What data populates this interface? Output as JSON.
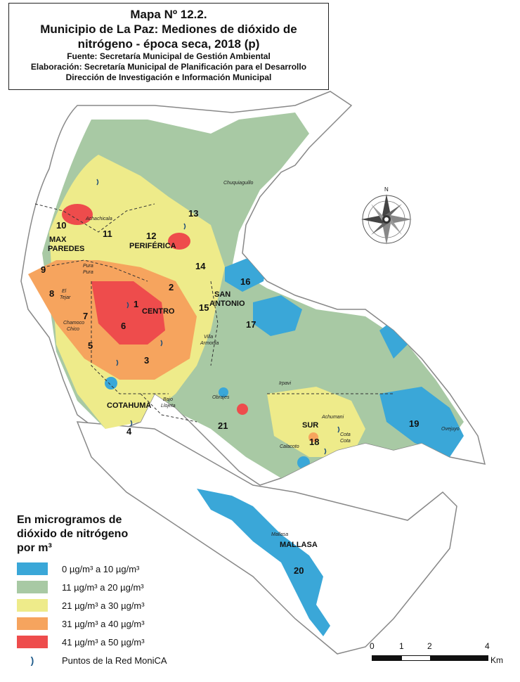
{
  "title": {
    "line1": "Mapa Nº 12.2.",
    "line2": "Municipio de La Paz: Mediones de dióxido de",
    "line3": "nitrógeno - época seca, 2018 (p)",
    "source": "Fuente: Secretaría Municipal de Gestión Ambiental",
    "elaboration": "Elaboración: Secretaría Municipal de Planificación para el Desarrollo",
    "direction": "Dirección de Investigación e Información Municipal"
  },
  "districts": [
    {
      "number": "10"
    },
    {
      "number": "11"
    },
    {
      "number": "12"
    },
    {
      "number": "13"
    },
    {
      "number": "14"
    },
    {
      "number": "9"
    },
    {
      "number": "8"
    },
    {
      "number": "7"
    },
    {
      "number": "1"
    },
    {
      "number": "2"
    },
    {
      "number": "6"
    },
    {
      "number": "5"
    },
    {
      "number": "3"
    },
    {
      "number": "4"
    },
    {
      "number": "15"
    },
    {
      "number": "16"
    },
    {
      "number": "17"
    },
    {
      "number": "21"
    },
    {
      "number": "18"
    },
    {
      "number": "19"
    },
    {
      "number": "20"
    }
  ],
  "macrodistricts": {
    "max_paredes_1": "MAX",
    "max_paredes_2": "PAREDES",
    "periferica": "PERIFÉRICA",
    "centro": "CENTRO",
    "san_antonio_1": "SAN",
    "san_antonio_2": "ANTONIO",
    "cotahuma": "COTAHUMA",
    "sur": "SUR",
    "mallasa": "MALLASA"
  },
  "places": {
    "chuquiaguillo": "Chuquiaguillo",
    "achachicala": "Achachicala",
    "pura_pura_1": "Pura",
    "pura_pura_2": "Pura",
    "el_tejar_1": "El",
    "el_tejar_2": "Tejar",
    "chamoco_1": "Chamoco",
    "chamoco_2": "Chico",
    "villa_armonia_1": "Villa",
    "villa_armonia_2": "Armonía",
    "bajo_llojeta_1": "Bajo",
    "bajo_llojeta_2": "Llojeta",
    "obrajes": "Obrajes",
    "irpavi": "Irpavi",
    "achumani": "Achumani",
    "cota_cota_1": "Cota",
    "cota_cota_2": "Cota",
    "calacoto": "Calacoto",
    "ovejuyo": "Ovejuyo",
    "mallasa": "Mallasa"
  },
  "compass": {
    "north": "N"
  },
  "legend": {
    "title_1": "En microgramos de",
    "title_2": "dióxido de nitrógeno",
    "title_3": "por m³",
    "classes": [
      {
        "label": "0 µg/m³  a 10 µg/m³",
        "color": "#3aa7d8"
      },
      {
        "label": "11 µg/m³  a 20 µg/m³",
        "color": "#a8c9a4"
      },
      {
        "label": "21 µg/m³  a 30 µg/m³",
        "color": "#eeeb8a"
      },
      {
        "label": "31 µg/m³  a 40 µg/m³",
        "color": "#f6a45e"
      },
      {
        "label": "41 µg/m³  a 50 µg/m³",
        "color": "#ee4c4c"
      }
    ],
    "points_label": "Puntos de la Red MoniCA",
    "points_icon": "monitoring-point-icon"
  },
  "scale": {
    "t0": "0",
    "t1": "1",
    "t2": "2",
    "t4": "4",
    "unit": "Km"
  }
}
